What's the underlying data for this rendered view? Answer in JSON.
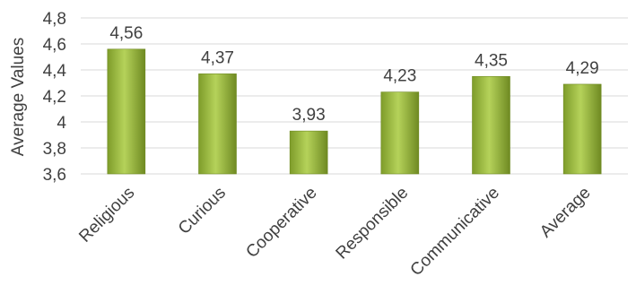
{
  "chart_data": {
    "type": "bar",
    "categories": [
      "Religious",
      "Curious",
      "Cooperative",
      "Responsible",
      "Communicative",
      "Average"
    ],
    "values": [
      4.56,
      4.37,
      3.93,
      4.23,
      4.35,
      4.29
    ],
    "data_labels": [
      "4,56",
      "4,37",
      "3,93",
      "4,23",
      "4,35",
      "4,29"
    ],
    "ylabel": "Average Values",
    "xlabel": "",
    "title": "",
    "ylim": [
      3.6,
      4.8
    ],
    "yticks": [
      3.6,
      3.8,
      4.0,
      4.2,
      4.4,
      4.6,
      4.8
    ],
    "ytick_labels": [
      "3,6",
      "3,8",
      "4",
      "4,2",
      "4,4",
      "4,6",
      "4,8"
    ],
    "grid": true,
    "legend": "none",
    "colors": {
      "bar_light": "#c3dc74",
      "bar_mid": "#9bbb3b",
      "bar_dark": "#6f8a22",
      "text": "#404040",
      "grid": "#d9d9d9"
    }
  }
}
